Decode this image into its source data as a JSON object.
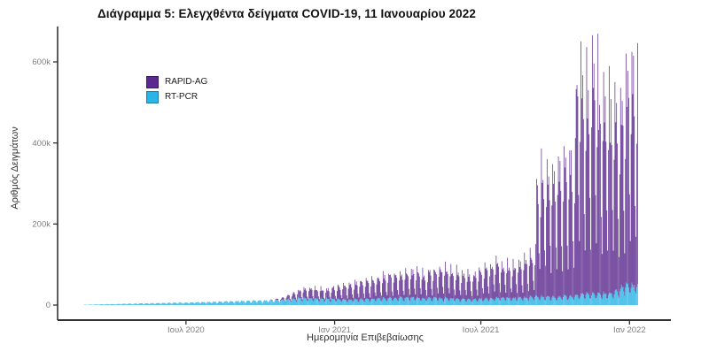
{
  "chart_data": {
    "type": "bar",
    "stacked": true,
    "title": "Διάγραμμα 5: Ελεγχθέντα δείγματα COVID-19, 11 Ιανουαρίου 2022",
    "xlabel": "Ημερομηνία Επιβεβαίωσης",
    "ylabel": "Αριθμός Δειγμάτων",
    "grid": "off",
    "legend_position": "inside-top-left",
    "x_axis": {
      "start_date": "2020-02-26",
      "end_date": "2022-01-11",
      "tick_dates": [
        "2020-07-01",
        "2021-01-01",
        "2021-07-01",
        "2022-01-01"
      ],
      "tick_labels": [
        "Ιουλ 2020",
        "Ιαν 2021",
        "Ιουλ 2021",
        "Ιαν 2022"
      ]
    },
    "y_axis": {
      "tick_values": [
        0,
        200000,
        400000,
        600000
      ],
      "tick_labels": [
        "0",
        "200k",
        "400k",
        "600k"
      ],
      "max_value_shown": 690000
    },
    "units": "samples per day; weekly_peaks arrays give the weekday-maximum in thousands for each week starting at start_date",
    "weekday_profile_sun_to_sat": {
      "RAPID-AG": [
        0.22,
        0.65,
        1.0,
        0.8,
        0.88,
        0.72,
        0.38
      ],
      "RT-PCR": [
        0.5,
        0.82,
        1.0,
        0.93,
        0.9,
        0.86,
        0.6
      ]
    },
    "series": [
      {
        "name": "RAPID-AG",
        "color": "#5c2a8e",
        "border_color": "#3a1d66",
        "weekly_peaks": [
          0,
          0,
          0,
          0,
          0,
          0,
          0,
          0,
          0,
          0,
          0,
          0,
          0,
          0,
          0,
          0,
          0,
          0,
          0,
          0,
          0,
          0,
          0,
          0,
          0,
          0,
          0,
          0,
          0,
          0,
          0,
          0,
          0,
          2,
          4,
          8,
          14,
          20,
          26,
          30,
          33,
          30,
          27,
          30,
          36,
          40,
          44,
          46,
          50,
          54,
          56,
          60,
          64,
          66,
          70,
          72,
          74,
          76,
          80,
          78,
          72,
          78,
          86,
          90,
          88,
          82,
          78,
          74,
          72,
          76,
          88,
          96,
          103,
          107,
          100,
          96,
          103,
          112,
          118,
          127,
          355,
          385,
          365,
          390,
          372,
          392,
          408,
          680,
          660,
          645,
          655,
          600,
          585,
          560,
          520,
          560,
          650,
          640
        ]
      },
      {
        "name": "RT-PCR",
        "color": "#29b5e6",
        "border_color": "#1b7fae",
        "weekly_peaks": [
          1,
          1.5,
          2,
          2.5,
          3,
          3,
          3.5,
          4,
          4,
          4.5,
          5,
          5,
          5.5,
          6,
          6,
          6.5,
          7,
          7,
          7.5,
          8,
          8.5,
          9,
          9.5,
          10,
          10,
          11,
          11,
          12,
          12,
          12.5,
          13,
          13,
          14,
          14,
          15,
          16,
          17,
          19,
          20,
          20,
          19,
          18,
          18,
          17,
          18,
          17,
          16,
          16,
          17,
          18,
          18,
          19,
          20,
          20,
          21,
          21,
          22,
          22,
          22,
          21,
          20,
          21,
          21,
          20,
          20,
          19,
          18,
          17,
          17,
          18,
          19,
          20,
          21,
          22,
          22,
          21,
          22,
          23,
          23,
          24,
          25,
          25,
          24,
          25,
          25,
          26,
          27,
          30,
          32,
          33,
          34,
          33,
          34,
          36,
          42,
          55,
          60,
          58
        ]
      }
    ]
  },
  "style": {
    "axis_line_color": "#333333",
    "tick_label_color": "#7e7e7e",
    "axis_title_color": "#333333",
    "background": "#ffffff"
  }
}
